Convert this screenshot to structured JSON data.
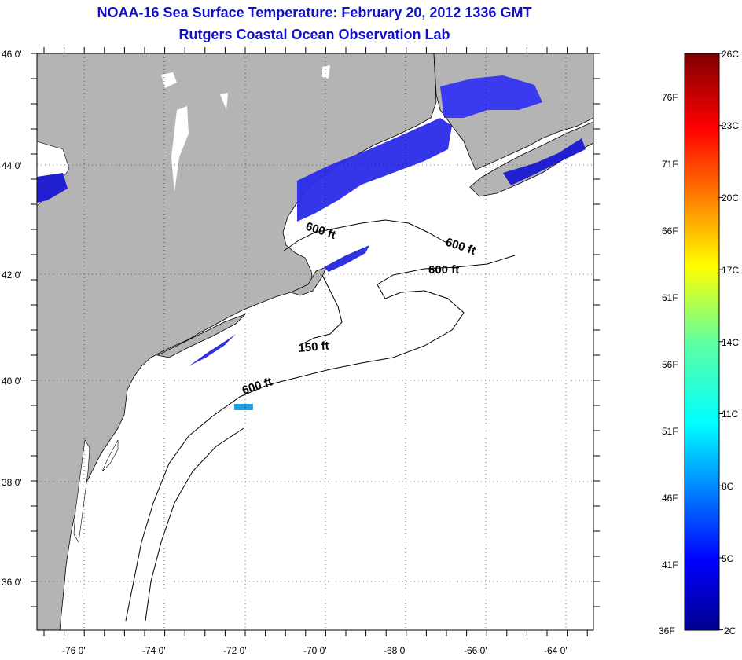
{
  "title": {
    "line1": "NOAA-16 Sea Surface Temperature:  February 20, 2012 1336 GMT",
    "line2": "Rutgers Coastal Ocean Observation Lab"
  },
  "axes": {
    "lat_labels": [
      "46 0'",
      "44 0'",
      "42 0'",
      "40 0'",
      "38 0'",
      "36 0'"
    ],
    "lon_labels": [
      "-76 0'",
      "-74 0'",
      "-72 0'",
      "-70 0'",
      "-68 0'",
      "-66 0'",
      "-64 0'"
    ]
  },
  "contour_labels": [
    "600 ft",
    "600 ft",
    "600 ft",
    "150 ft",
    "600 ft"
  ],
  "colorbar": {
    "celsius": [
      "26C",
      "23C",
      "20C",
      "17C",
      "14C",
      "11C",
      "8C",
      "5C",
      "2C"
    ],
    "fahrenheit": [
      "76F",
      "71F",
      "66F",
      "61F",
      "56F",
      "51F",
      "46F",
      "41F",
      "36F"
    ]
  },
  "colors": {
    "land": "#b4b4b4",
    "ocean": "#ffffff",
    "title": "#1010c8",
    "cold_sst": "#2020e0"
  }
}
